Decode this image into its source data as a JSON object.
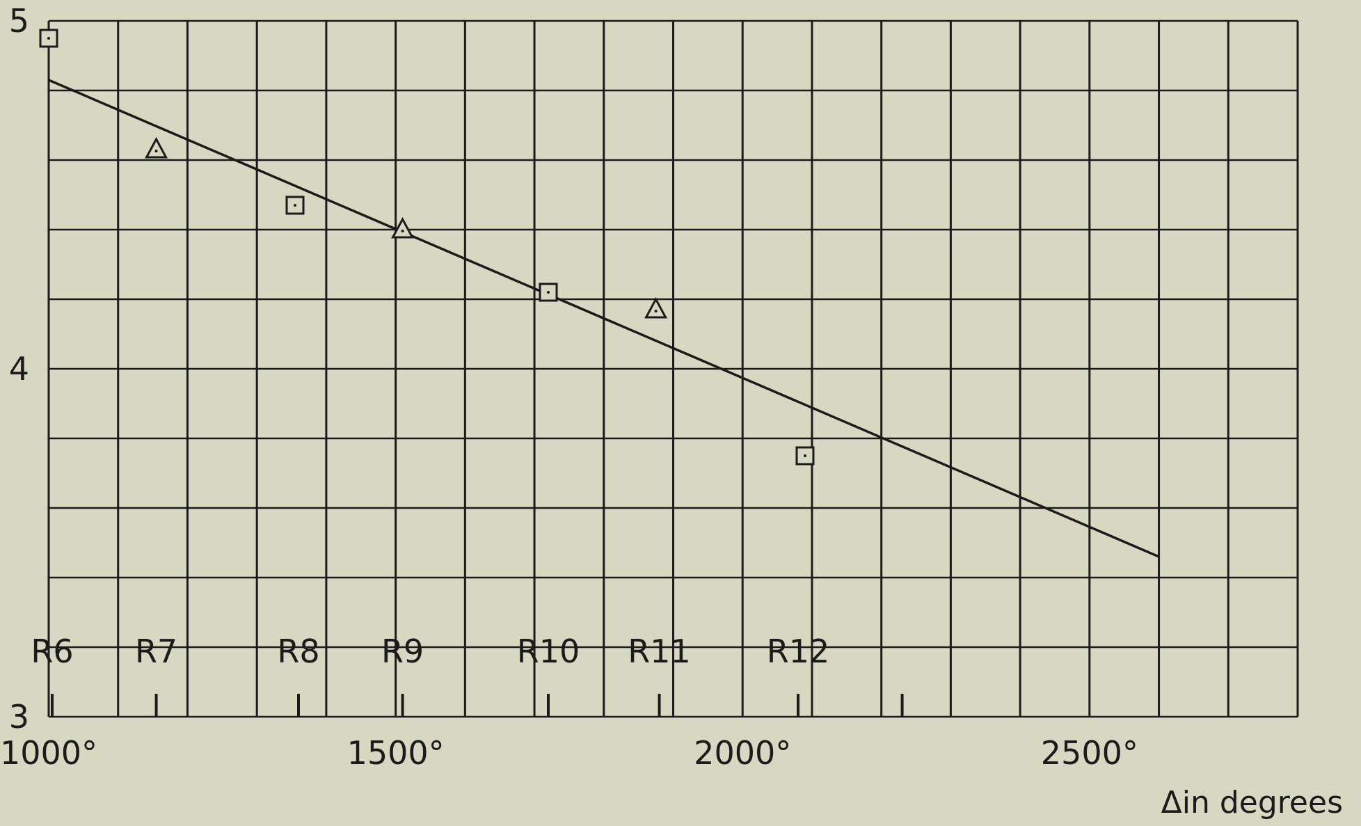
{
  "chart_data": {
    "type": "scatter",
    "title": "",
    "xlabel": "Δin degrees",
    "ylabel": "",
    "xlim": [
      1000,
      2800
    ],
    "ylim": [
      3,
      5
    ],
    "grid": true,
    "x_ticks": [
      {
        "value": 1000,
        "label": "1000°"
      },
      {
        "value": 1500,
        "label": "1500°"
      },
      {
        "value": 2000,
        "label": "2000°"
      },
      {
        "value": 2500,
        "label": "2500°"
      }
    ],
    "y_ticks": [
      {
        "value": 5,
        "label": "5"
      },
      {
        "value": 4,
        "label": "4"
      },
      {
        "value": 3,
        "label": "3"
      }
    ],
    "series": [
      {
        "marker": "square",
        "points": [
          {
            "x": 1000,
            "y": 4.95
          },
          {
            "x": 1355,
            "y": 4.47
          },
          {
            "x": 1720,
            "y": 4.22
          },
          {
            "x": 2090,
            "y": 3.75
          }
        ]
      },
      {
        "marker": "triangle",
        "points": [
          {
            "x": 1155,
            "y": 4.63
          },
          {
            "x": 1510,
            "y": 4.4
          },
          {
            "x": 1875,
            "y": 4.17
          }
        ]
      }
    ],
    "fit_line": {
      "x": [
        1000,
        2600
      ],
      "y": [
        4.83,
        3.46
      ]
    },
    "annotations": [
      {
        "label": "R6",
        "x": 1005
      },
      {
        "label": "R7",
        "x": 1155
      },
      {
        "label": "R8",
        "x": 1360
      },
      {
        "label": "R9",
        "x": 1510
      },
      {
        "label": "R10",
        "x": 1720
      },
      {
        "label": "R11",
        "x": 1880
      },
      {
        "label": "R12",
        "x": 2080
      },
      {
        "label": "",
        "x": 2230
      }
    ]
  }
}
